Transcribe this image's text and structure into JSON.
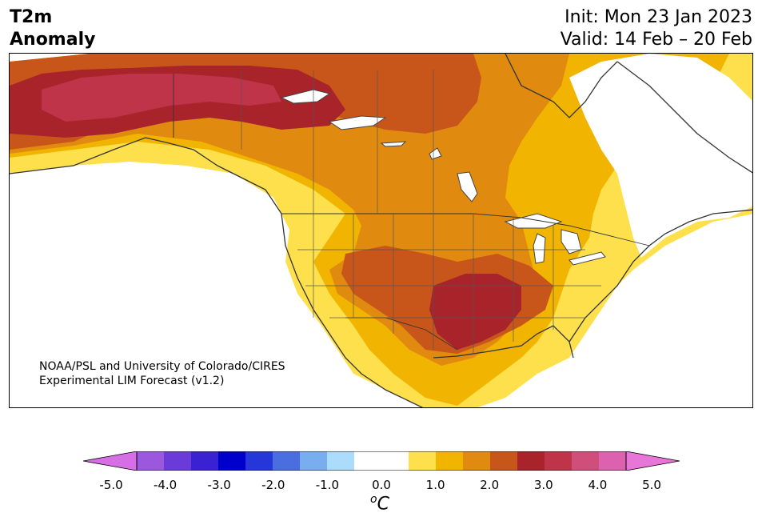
{
  "header": {
    "title_line1": "T2m",
    "title_line2": "Anomaly",
    "init": "Init: Mon 23 Jan 2023",
    "valid": "Valid: 14 Feb – 20 Feb"
  },
  "credit": {
    "line1": "NOAA/PSL and University of Colorado/CIRES",
    "line2": "Experimental LIM Forecast (v1.2)"
  },
  "colorbar": {
    "unit_base": "C",
    "unit_super": "o",
    "ticks": [
      "-5.0",
      "-4.0",
      "-3.0",
      "-2.0",
      "-1.0",
      "0.0",
      "1.0",
      "2.0",
      "3.0",
      "4.0",
      "5.0"
    ],
    "colors": [
      "#d66fe5",
      "#9b57de",
      "#6a3bd9",
      "#3a22d3",
      "#0000cd",
      "#2537d9",
      "#4a6ee0",
      "#78aef0",
      "#abdcfb",
      "#ffffff",
      "#ffffff",
      "#fde04b",
      "#f1b400",
      "#e08a10",
      "#c8561a",
      "#a8242a",
      "#c0344a",
      "#cf4f7a",
      "#dc62b0",
      "#e875d8"
    ],
    "extend_low_color": "#d66fe5",
    "extend_high_color": "#e875d8"
  },
  "map": {
    "region": "North America",
    "variable": "2m temperature anomaly",
    "anomaly_colors": {
      "plus_0_5_to_1": "#fde04b",
      "plus_1_to_1_5": "#f1b400",
      "plus_1_5_to_2": "#e08a10",
      "plus_2_to_2_5": "#c8561a",
      "plus_2_5_to_3": "#a8242a",
      "plus_3_to_3_5": "#c0344a",
      "near_zero": "#ffffff"
    }
  }
}
